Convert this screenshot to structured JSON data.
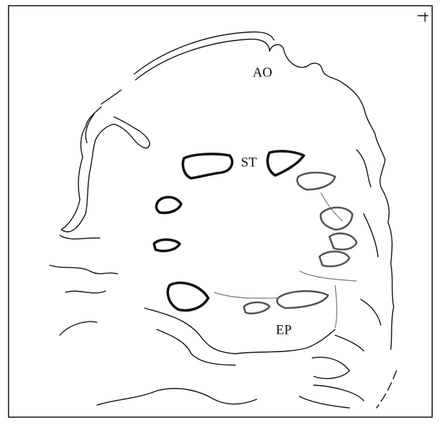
{
  "labels": {
    "ao": "AO",
    "st": "ST",
    "ep": "EP"
  }
}
